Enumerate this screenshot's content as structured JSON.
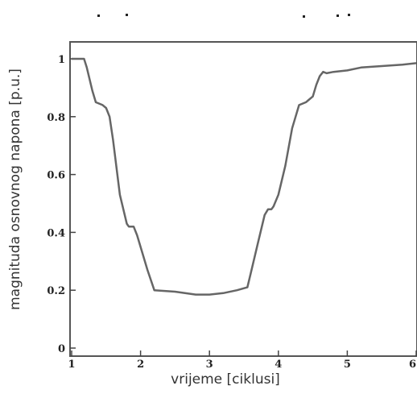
{
  "chart_data": {
    "type": "line",
    "title": "",
    "xlabel": "vrijeme [ciklusi]",
    "ylabel": "magnituda osnovnog napona [p.u.]",
    "xlim": [
      1,
      6
    ],
    "ylim": [
      0,
      1.05
    ],
    "xticks": [
      1,
      2,
      3,
      4,
      5,
      6
    ],
    "xtick_labels": [
      "1",
      "2",
      "3",
      "4",
      "5",
      "6"
    ],
    "yticks": [
      0,
      0.2,
      0.4,
      0.6,
      0.8,
      1
    ],
    "ytick_labels": [
      "0",
      "0.2",
      "0.4",
      "0.6",
      "0.8",
      "1"
    ],
    "grid": false,
    "series": [
      {
        "x": [
          1.0,
          1.18,
          1.22,
          1.3,
          1.35,
          1.45,
          1.5,
          1.55,
          1.6,
          1.7,
          1.8,
          1.83,
          1.9,
          1.95,
          2.0,
          2.1,
          2.2,
          2.5,
          2.8,
          3.0,
          3.2,
          3.4,
          3.55,
          3.6,
          3.7,
          3.8,
          3.85,
          3.9,
          3.93,
          4.0,
          4.1,
          4.2,
          4.25,
          4.3,
          4.35,
          4.4,
          4.5,
          4.55,
          4.6,
          4.65,
          4.7,
          4.8,
          5.0,
          5.2,
          5.5,
          5.8,
          6.0
        ],
        "y": [
          1.0,
          1.0,
          0.97,
          0.89,
          0.85,
          0.84,
          0.83,
          0.8,
          0.72,
          0.53,
          0.43,
          0.42,
          0.42,
          0.39,
          0.35,
          0.27,
          0.2,
          0.195,
          0.185,
          0.185,
          0.19,
          0.2,
          0.21,
          0.26,
          0.36,
          0.46,
          0.48,
          0.48,
          0.49,
          0.53,
          0.63,
          0.76,
          0.8,
          0.84,
          0.845,
          0.85,
          0.87,
          0.91,
          0.94,
          0.955,
          0.95,
          0.955,
          0.96,
          0.97,
          0.975,
          0.98,
          0.985
        ]
      }
    ]
  }
}
